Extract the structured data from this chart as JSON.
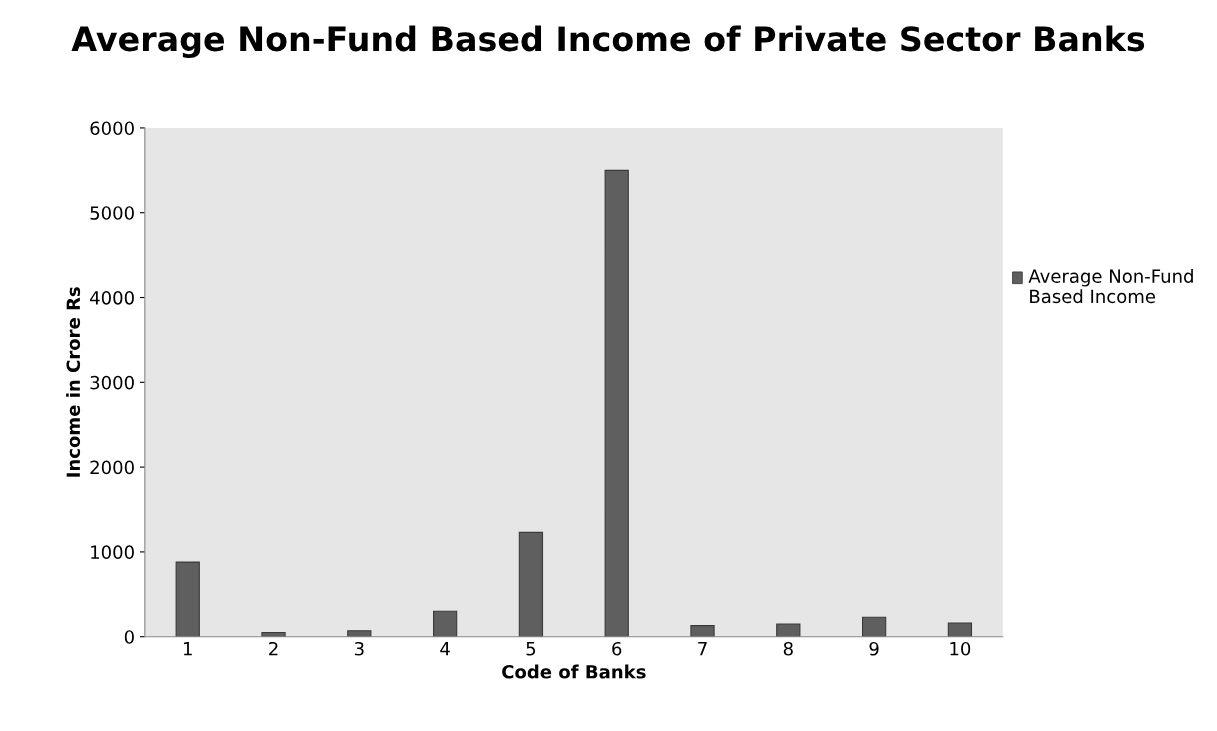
{
  "chart_data": {
    "type": "bar",
    "title": "Average Non-Fund Based Income of Private Sector Banks",
    "xlabel": "Code of Banks",
    "ylabel": "Income in Crore Rs",
    "categories": [
      "1",
      "2",
      "3",
      "4",
      "5",
      "6",
      "7",
      "8",
      "9",
      "10"
    ],
    "series": [
      {
        "name": "Average Non-Fund Based Income",
        "color": "#5f5f5f",
        "values": [
          880,
          50,
          70,
          300,
          1230,
          5500,
          130,
          150,
          230,
          160
        ]
      }
    ],
    "ylim": [
      0,
      6000
    ],
    "yticks": [
      0,
      1000,
      2000,
      3000,
      4000,
      5000,
      6000
    ],
    "grid": false,
    "legend": "right"
  }
}
